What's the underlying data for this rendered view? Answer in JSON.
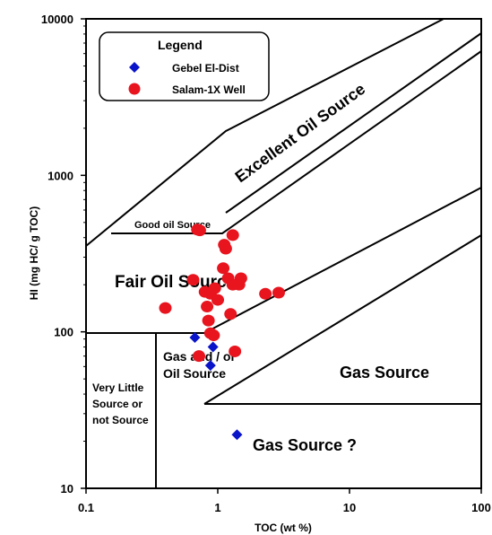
{
  "chart_data": {
    "type": "scatter",
    "xlabel": "TOC (wt %)",
    "ylabel": "HI (mg HC/ g TOC)",
    "x_scale": "log",
    "y_scale": "log",
    "xlim": [
      0.1,
      100
    ],
    "ylim": [
      10,
      10000
    ],
    "x_ticks": [
      "0.1",
      "1",
      "10",
      "100"
    ],
    "y_ticks": [
      "10",
      "100",
      "1000",
      "10000"
    ],
    "legend": {
      "title": "Legend",
      "position": "top-left",
      "entries": [
        "Gebel El-Dist",
        "Salam-1X Well"
      ]
    },
    "regions": {
      "excellent": "Excellent Oil Source",
      "good": "Good oil Source",
      "fair": "Fair Oil Source",
      "gas_oil_line1": "Gas and / or",
      "gas_oil_line2": "Oil Source",
      "gas": "Gas Source",
      "gas_q": "Gas Source ?",
      "little_line1": "Very Little",
      "little_line2": "Source or",
      "little_line3": "not Source"
    },
    "series": [
      {
        "name": "Gebel El-Dist",
        "color": "#0a14c8",
        "marker": "diamond",
        "points": [
          [
            0.67,
            92
          ],
          [
            0.92,
            80
          ],
          [
            0.88,
            61
          ],
          [
            1.4,
            22
          ]
        ]
      },
      {
        "name": "Salam-1X Well",
        "color": "#e8141e",
        "marker": "circle",
        "points": [
          [
            0.7,
            450
          ],
          [
            0.73,
            445
          ],
          [
            1.3,
            415
          ],
          [
            1.12,
            360
          ],
          [
            1.15,
            340
          ],
          [
            1.1,
            255
          ],
          [
            0.65,
            215
          ],
          [
            1.2,
            220
          ],
          [
            1.5,
            220
          ],
          [
            1.3,
            200
          ],
          [
            1.45,
            200
          ],
          [
            0.95,
            190
          ],
          [
            0.8,
            180
          ],
          [
            0.88,
            175
          ],
          [
            2.3,
            175
          ],
          [
            2.9,
            178
          ],
          [
            1.0,
            160
          ],
          [
            0.83,
            145
          ],
          [
            0.4,
            142
          ],
          [
            1.25,
            130
          ],
          [
            0.85,
            118
          ],
          [
            0.88,
            98
          ],
          [
            0.93,
            95
          ],
          [
            0.72,
            70
          ],
          [
            1.35,
            75
          ]
        ]
      }
    ]
  }
}
